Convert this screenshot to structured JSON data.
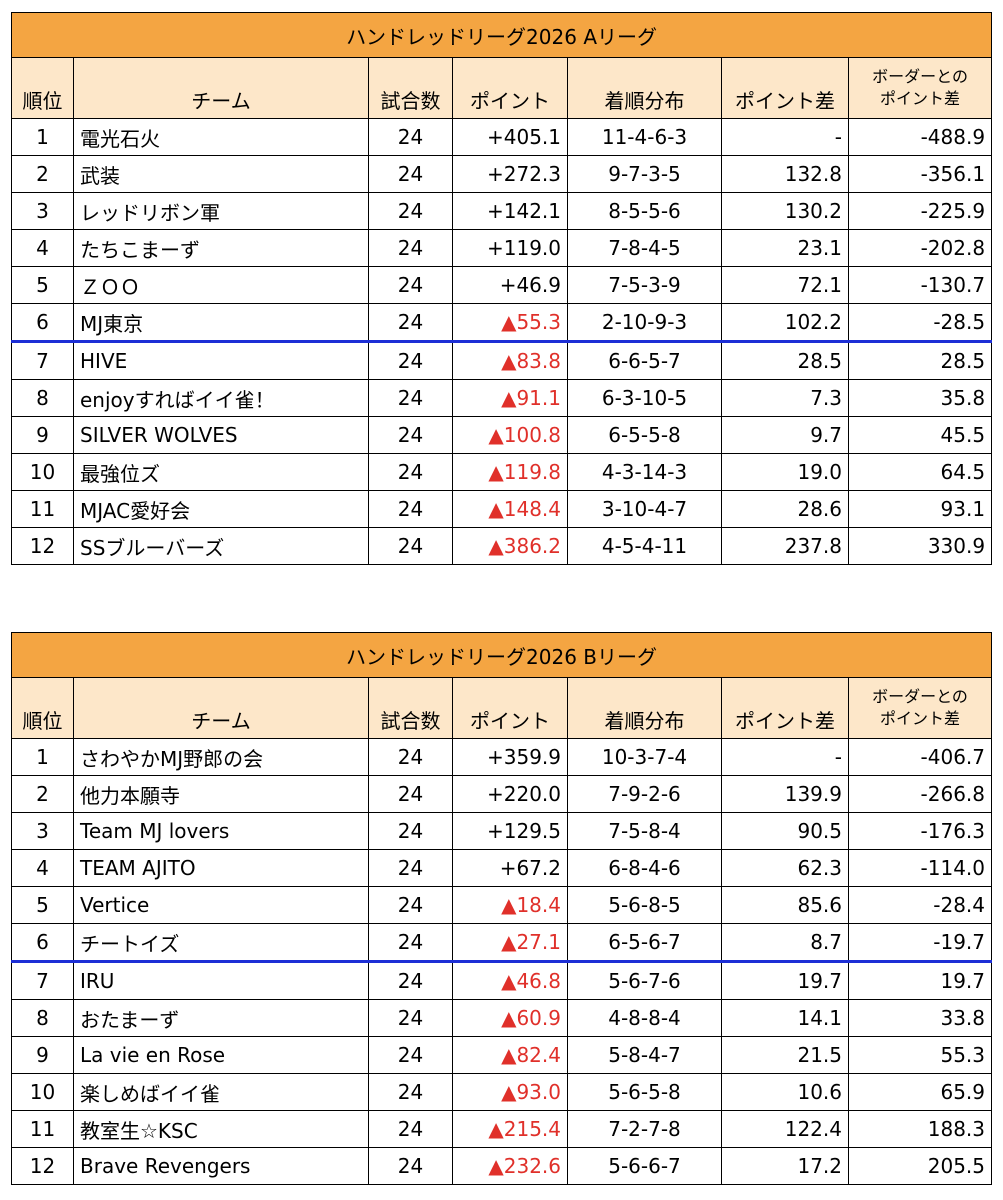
{
  "headers": {
    "rank": "順位",
    "team": "チーム",
    "games": "試合数",
    "points": "ポイント",
    "distribution": "着順分布",
    "points_diff": "ポイント差",
    "border_diff_line1": "ボーダーとの",
    "border_diff_line2": "ポイント差"
  },
  "colors": {
    "title_bg": "#f4a542",
    "header_bg": "#fde7c9",
    "negative_text": "#e0302a",
    "border_line": "#1d2fd6"
  },
  "leagues": [
    {
      "title": "ハンドレッドリーグ2026 Aリーグ",
      "rows": [
        {
          "rank": "1",
          "team": "電光石火",
          "games": "24",
          "points": "+405.1",
          "negative": false,
          "dist": "11-4-6-3",
          "diff": "-",
          "border": "-488.9"
        },
        {
          "rank": "2",
          "team": "武装",
          "games": "24",
          "points": "+272.3",
          "negative": false,
          "dist": "9-7-3-5",
          "diff": "132.8",
          "border": "-356.1"
        },
        {
          "rank": "3",
          "team": "レッドリボン軍",
          "games": "24",
          "points": "+142.1",
          "negative": false,
          "dist": "8-5-5-6",
          "diff": "130.2",
          "border": "-225.9"
        },
        {
          "rank": "4",
          "team": "たちこまーず",
          "games": "24",
          "points": "+119.0",
          "negative": false,
          "dist": "7-8-4-5",
          "diff": "23.1",
          "border": "-202.8"
        },
        {
          "rank": "5",
          "team": "ＺＯＯ",
          "games": "24",
          "points": "+46.9",
          "negative": false,
          "dist": "7-5-3-9",
          "diff": "72.1",
          "border": "-130.7"
        },
        {
          "rank": "6",
          "team": "MJ東京",
          "games": "24",
          "points": "▲55.3",
          "negative": true,
          "dist": "2-10-9-3",
          "diff": "102.2",
          "border": "-28.5"
        },
        {
          "rank": "7",
          "team": "HIVE",
          "games": "24",
          "points": "▲83.8",
          "negative": true,
          "dist": "6-6-5-7",
          "diff": "28.5",
          "border": "28.5"
        },
        {
          "rank": "8",
          "team": "enjoyすればイイ雀！",
          "games": "24",
          "points": "▲91.1",
          "negative": true,
          "dist": "6-3-10-5",
          "diff": "7.3",
          "border": "35.8"
        },
        {
          "rank": "9",
          "team": "SILVER WOLVES",
          "games": "24",
          "points": "▲100.8",
          "negative": true,
          "dist": "6-5-5-8",
          "diff": "9.7",
          "border": "45.5"
        },
        {
          "rank": "10",
          "team": "最強位ズ",
          "games": "24",
          "points": "▲119.8",
          "negative": true,
          "dist": "4-3-14-3",
          "diff": "19.0",
          "border": "64.5"
        },
        {
          "rank": "11",
          "team": "MJAC愛好会",
          "games": "24",
          "points": "▲148.4",
          "negative": true,
          "dist": "3-10-4-7",
          "diff": "28.6",
          "border": "93.1"
        },
        {
          "rank": "12",
          "team": "SSブルーバーズ",
          "games": "24",
          "points": "▲386.2",
          "negative": true,
          "dist": "4-5-4-11",
          "diff": "237.8",
          "border": "330.9"
        }
      ]
    },
    {
      "title": "ハンドレッドリーグ2026 Bリーグ",
      "rows": [
        {
          "rank": "1",
          "team": "さわやかMJ野郎の会",
          "games": "24",
          "points": "+359.9",
          "negative": false,
          "dist": "10-3-7-4",
          "diff": "-",
          "border": "-406.7"
        },
        {
          "rank": "2",
          "team": "他力本願寺",
          "games": "24",
          "points": "+220.0",
          "negative": false,
          "dist": "7-9-2-6",
          "diff": "139.9",
          "border": "-266.8"
        },
        {
          "rank": "3",
          "team": "Team MJ lovers",
          "games": "24",
          "points": "+129.5",
          "negative": false,
          "dist": "7-5-8-4",
          "diff": "90.5",
          "border": "-176.3"
        },
        {
          "rank": "4",
          "team": "TEAM AJITO",
          "games": "24",
          "points": "+67.2",
          "negative": false,
          "dist": "6-8-4-6",
          "diff": "62.3",
          "border": "-114.0"
        },
        {
          "rank": "5",
          "team": "Vertice",
          "games": "24",
          "points": "▲18.4",
          "negative": true,
          "dist": "5-6-8-5",
          "diff": "85.6",
          "border": "-28.4"
        },
        {
          "rank": "6",
          "team": "チートイズ",
          "games": "24",
          "points": "▲27.1",
          "negative": true,
          "dist": "6-5-6-7",
          "diff": "8.7",
          "border": "-19.7"
        },
        {
          "rank": "7",
          "team": "IRU",
          "games": "24",
          "points": "▲46.8",
          "negative": true,
          "dist": "5-6-7-6",
          "diff": "19.7",
          "border": "19.7"
        },
        {
          "rank": "8",
          "team": "おたまーず",
          "games": "24",
          "points": "▲60.9",
          "negative": true,
          "dist": "4-8-8-4",
          "diff": "14.1",
          "border": "33.8"
        },
        {
          "rank": "9",
          "team": "La vie en Rose",
          "games": "24",
          "points": "▲82.4",
          "negative": true,
          "dist": "5-8-4-7",
          "diff": "21.5",
          "border": "55.3"
        },
        {
          "rank": "10",
          "team": "楽しめばイイ雀",
          "games": "24",
          "points": "▲93.0",
          "negative": true,
          "dist": "5-6-5-8",
          "diff": "10.6",
          "border": "65.9"
        },
        {
          "rank": "11",
          "team": "教室生☆KSC",
          "games": "24",
          "points": "▲215.4",
          "negative": true,
          "dist": "7-2-7-8",
          "diff": "122.4",
          "border": "188.3"
        },
        {
          "rank": "12",
          "team": "Brave Revengers",
          "games": "24",
          "points": "▲232.6",
          "negative": true,
          "dist": "5-6-6-7",
          "diff": "17.2",
          "border": "205.5"
        }
      ]
    }
  ]
}
